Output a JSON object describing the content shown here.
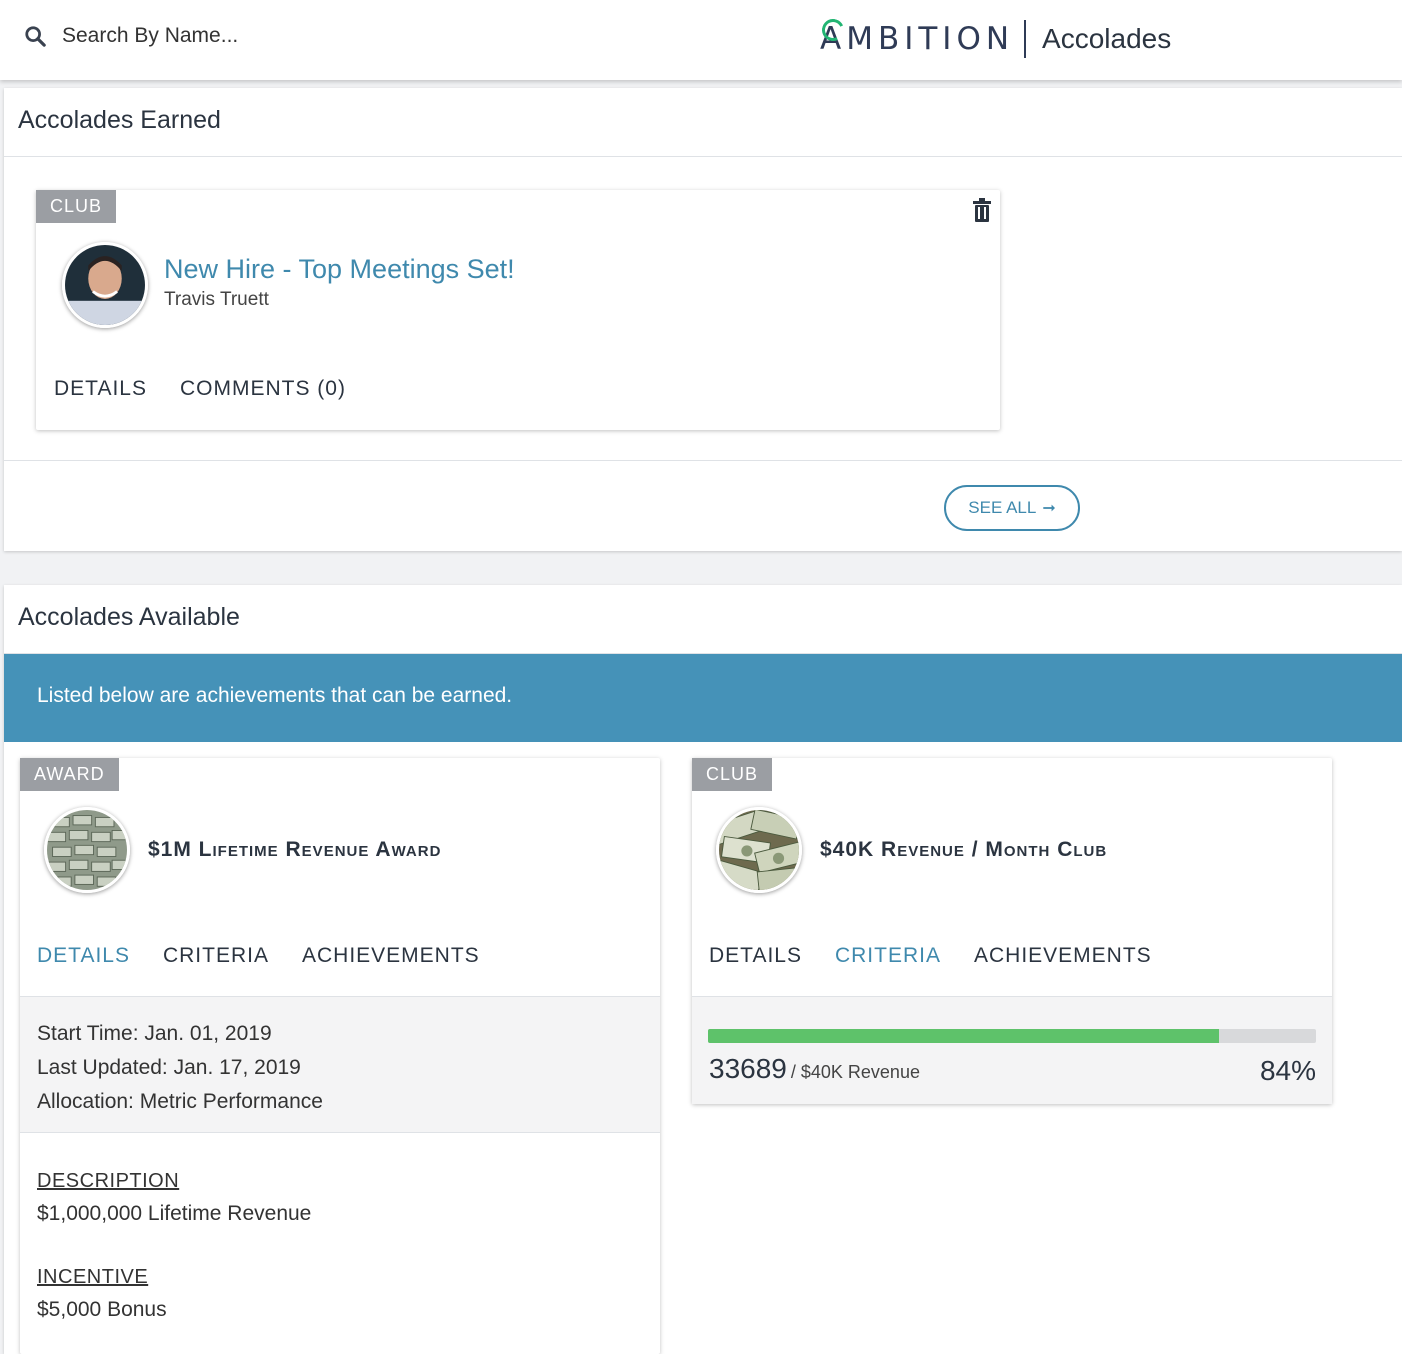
{
  "search": {
    "placeholder": "Search By Name..."
  },
  "brand": {
    "logo_text": "AMBITION",
    "section_title": "Accolades",
    "logo_accent": "#22b573"
  },
  "earned": {
    "header": "Accolades Earned",
    "card": {
      "badge": "CLUB",
      "title": "New Hire - Top Meetings Set!",
      "subtitle": "Travis Truett",
      "tabs": [
        "DETAILS",
        "COMMENTS (0)"
      ]
    },
    "see_all_label": "SEE ALL"
  },
  "available": {
    "header": "Accolades Available",
    "banner": "Listed below are achievements that can be earned.",
    "banner_color": "#4592b8",
    "cards": [
      {
        "badge": "AWARD",
        "title": "$1M Lifetime Revenue Award",
        "tabs": [
          "DETAILS",
          "CRITERIA",
          "ACHIEVEMENTS"
        ],
        "active_tab": "DETAILS",
        "details": {
          "start_time": "Start Time: Jan. 01, 2019",
          "last_updated": "Last Updated: Jan. 17, 2019",
          "allocation": "Allocation: Metric Performance"
        },
        "description_label": "DESCRIPTION",
        "description": "$1,000,000 Lifetime Revenue",
        "incentive_label": "INCENTIVE",
        "incentive": "$5,000 Bonus"
      },
      {
        "badge": "CLUB",
        "title": "$40K Revenue / Month Club",
        "tabs": [
          "DETAILS",
          "CRITERIA",
          "ACHIEVEMENTS"
        ],
        "active_tab": "CRITERIA",
        "progress": {
          "current": "33689",
          "target": "/ $40K Revenue",
          "percent_label": "84%",
          "percent": 84,
          "bar_color": "#5ec26a"
        }
      }
    ]
  },
  "accent_color": "#3f89ad"
}
